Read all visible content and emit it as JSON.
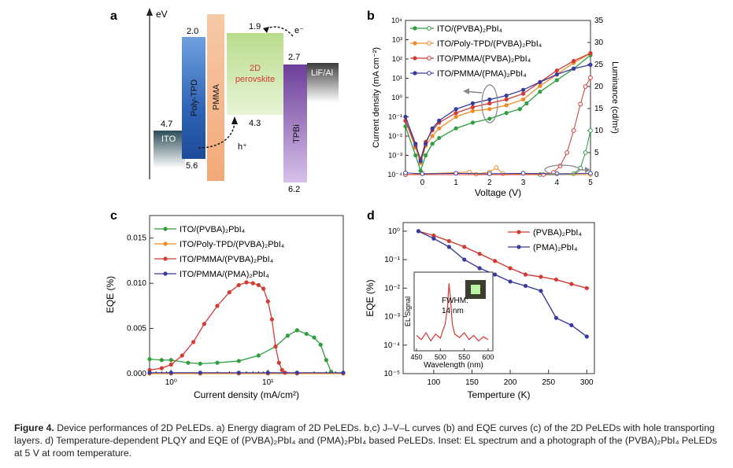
{
  "panel_a": {
    "letter": "a",
    "axis_label": "eV",
    "layers": [
      {
        "name": "ITO",
        "top": "4.7",
        "bottom": "",
        "color": "#2b4d57"
      },
      {
        "name": "Poly-TPD",
        "top": "2.0",
        "bottom": "5.6",
        "color": "#3a75c4"
      },
      {
        "name": "PMMA",
        "top": "",
        "bottom": "",
        "color": "#f4b58a"
      },
      {
        "name": "2D perovskite",
        "name_line1": "2D",
        "name_line2": "perovskite",
        "top": "1.9",
        "bottom": "4.3",
        "color": "#cfe6a8"
      },
      {
        "name": "TPBi",
        "top": "2.7",
        "bottom": "6.2",
        "color": "#8b5fb0"
      },
      {
        "name": "LiF/Al",
        "top": "",
        "bottom": "",
        "color": "#555555"
      }
    ],
    "electron_label": "e⁻",
    "hole_label": "h⁺"
  },
  "panel_b": {
    "letter": "b",
    "chart_data": {
      "type": "line",
      "xlabel": "Voltage (V)",
      "ylabel_left": "Current density (mA cm⁻²)",
      "ylabel_right": "Luminance (cd/m²)",
      "xlim": [
        -0.5,
        5
      ],
      "ylim_left_log10": [
        -4,
        4
      ],
      "ylim_right": [
        0,
        35
      ],
      "x_ticks": [
        "0",
        "1",
        "2",
        "3",
        "4",
        "5"
      ],
      "y_left_ticks": [
        "10⁻⁴",
        "10⁻³",
        "10⁻²",
        "10⁻¹",
        "10⁰",
        "10¹",
        "10²",
        "10³",
        "10⁴"
      ],
      "y_right_ticks": [
        "0",
        "5",
        "10",
        "15",
        "20",
        "25",
        "30",
        "35"
      ],
      "legend_position": "top-left",
      "series": [
        {
          "name": "ITO/(PVBA)₂PbI₄",
          "color": "#2e9e3e",
          "jv": [
            [
              -0.5,
              -1.5
            ],
            [
              -0.2,
              -3.0
            ],
            [
              -0.05,
              -3.8
            ],
            [
              0.1,
              -3.0
            ],
            [
              0.3,
              -2.4
            ],
            [
              0.5,
              -2.1
            ],
            [
              1.0,
              -1.6
            ],
            [
              1.5,
              -1.3
            ],
            [
              2.0,
              -1.1
            ],
            [
              2.5,
              -0.8
            ],
            [
              2.9,
              -0.6
            ],
            [
              3.1,
              -0.3
            ],
            [
              3.5,
              0.3
            ],
            [
              4.0,
              0.9
            ],
            [
              4.5,
              1.5
            ],
            [
              5.0,
              2.2
            ]
          ],
          "lum": [
            [
              -0.5,
              0
            ],
            [
              3.5,
              0
            ],
            [
              4.5,
              0.2
            ],
            [
              4.7,
              1.5
            ],
            [
              4.85,
              5
            ],
            [
              5.0,
              10
            ]
          ]
        },
        {
          "name": "ITO/Poly-TPD/(PVBA)₂PbI₄",
          "color": "#f08a24",
          "jv": [
            [
              -0.5,
              -1.2
            ],
            [
              -0.2,
              -2.6
            ],
            [
              -0.05,
              -3.4
            ],
            [
              0.1,
              -2.5
            ],
            [
              0.3,
              -2.0
            ],
            [
              0.5,
              -1.6
            ],
            [
              1.0,
              -1.0
            ],
            [
              1.5,
              -0.7
            ],
            [
              2.0,
              -0.6
            ],
            [
              2.5,
              -0.4
            ],
            [
              3.0,
              -0.1
            ],
            [
              3.5,
              0.6
            ],
            [
              4.0,
              1.2
            ],
            [
              4.5,
              1.8
            ],
            [
              5.0,
              2.3
            ]
          ],
          "lum": [
            [
              -0.5,
              0
            ],
            [
              1.4,
              0.6
            ],
            [
              1.6,
              0.1
            ],
            [
              2.0,
              0.6
            ],
            [
              2.2,
              1.6
            ],
            [
              2.4,
              0.2
            ],
            [
              5.0,
              0
            ]
          ]
        },
        {
          "name": "ITO/PMMA/(PVBA)₂PbI₄",
          "color": "#d23a32",
          "jv": [
            [
              -0.5,
              -1.2
            ],
            [
              -0.2,
              -2.5
            ],
            [
              -0.05,
              -3.2
            ],
            [
              0.1,
              -2.3
            ],
            [
              0.3,
              -1.7
            ],
            [
              0.5,
              -1.3
            ],
            [
              1.0,
              -0.8
            ],
            [
              1.5,
              -0.5
            ],
            [
              2.0,
              -0.3
            ],
            [
              2.5,
              -0.1
            ],
            [
              3.0,
              0.2
            ],
            [
              3.5,
              0.8
            ],
            [
              4.0,
              1.4
            ],
            [
              4.5,
              1.9
            ],
            [
              5.0,
              2.3
            ]
          ],
          "lum": [
            [
              -0.5,
              0
            ],
            [
              3.6,
              0
            ],
            [
              3.9,
              0.5
            ],
            [
              4.1,
              2
            ],
            [
              4.3,
              5
            ],
            [
              4.5,
              10
            ],
            [
              4.7,
              16
            ],
            [
              4.85,
              20
            ],
            [
              5.0,
              22
            ]
          ]
        },
        {
          "name": "ITO/PMMA/(PMA)₂PbI₄",
          "color": "#3a3a9e",
          "jv": [
            [
              -0.5,
              -1.0
            ],
            [
              -0.2,
              -2.4
            ],
            [
              -0.05,
              -3.3
            ],
            [
              0.1,
              -2.4
            ],
            [
              0.3,
              -1.6
            ],
            [
              0.5,
              -1.2
            ],
            [
              1.0,
              -0.6
            ],
            [
              1.5,
              -0.3
            ],
            [
              2.0,
              -0.1
            ],
            [
              2.5,
              0.1
            ],
            [
              3.0,
              0.4
            ],
            [
              3.5,
              0.8
            ],
            [
              4.0,
              1.2
            ],
            [
              4.5,
              1.5
            ],
            [
              5.0,
              1.7
            ]
          ],
          "lum": [
            [
              -0.5,
              0.4
            ],
            [
              0.0,
              0.2
            ],
            [
              1.0,
              0.3
            ],
            [
              2.0,
              0.2
            ],
            [
              3.0,
              0.3
            ],
            [
              4.0,
              0.2
            ],
            [
              5.0,
              0.3
            ]
          ]
        }
      ]
    }
  },
  "panel_c": {
    "letter": "c",
    "chart_data": {
      "type": "line",
      "xlabel": "Current density (mA/cm²)",
      "ylabel": "EQE (%)",
      "x_scale": "log",
      "xlim": [
        0.6,
        60
      ],
      "ylim": [
        0,
        0.0175
      ],
      "x_ticks": [
        "10⁰",
        "10¹"
      ],
      "y_ticks": [
        "0.000",
        "0.005",
        "0.010",
        "0.015"
      ],
      "legend_position": "top-left",
      "series": [
        {
          "name": "ITO/(PVBA)₂PbI₄",
          "color": "#2e9e3e",
          "x": [
            0.6,
            0.8,
            1.0,
            1.5,
            2.0,
            3.0,
            5.0,
            8.0,
            12.0,
            16.0,
            20.0,
            25.0,
            30.0,
            35.0,
            40.0,
            45.0
          ],
          "y": [
            0.0016,
            0.0015,
            0.0015,
            0.0012,
            0.0011,
            0.0012,
            0.0014,
            0.002,
            0.003,
            0.0042,
            0.0048,
            0.0044,
            0.004,
            0.0032,
            0.0015,
            0.0002
          ]
        },
        {
          "name": "ITO/Poly-TPD/(PVBA)₂PbI₄",
          "color": "#f08a24",
          "x": [
            0.6,
            1.0,
            2.0,
            5.0,
            10.0,
            20.0,
            60.0
          ],
          "y": [
            0.0,
            0.0,
            0.0,
            0.0,
            0.0,
            0.0,
            0.0
          ]
        },
        {
          "name": "ITO/PMMA/(PVBA)₂PbI₄",
          "color": "#d23a32",
          "x": [
            0.6,
            0.8,
            1.0,
            1.3,
            1.7,
            2.2,
            3.0,
            4.0,
            5.0,
            6.0,
            7.0,
            8.0,
            9.0,
            10.0,
            11.0,
            12.0,
            13.0,
            14.0,
            15.0
          ],
          "y": [
            0.0004,
            0.0006,
            0.001,
            0.002,
            0.0035,
            0.0055,
            0.0075,
            0.009,
            0.0098,
            0.0101,
            0.01,
            0.0098,
            0.0094,
            0.008,
            0.006,
            0.003,
            0.0012,
            0.0004,
            0.0001
          ]
        },
        {
          "name": "ITO/PMMA/(PMA)₂PbI₄",
          "color": "#3a3a9e",
          "x": [
            0.6,
            1.0,
            2.0,
            5.0,
            10.0,
            20.0,
            60.0
          ],
          "y": [
            0.0001,
            0.0001,
            0.0001,
            0.0001,
            0.0001,
            0.0001,
            0.0001
          ]
        }
      ]
    }
  },
  "panel_d": {
    "letter": "d",
    "chart_data": {
      "type": "line",
      "xlabel": "Temperture (K)",
      "ylabel": "EQE (%)",
      "y_scale": "log",
      "xlim": [
        60,
        310
      ],
      "ylim_log10": [
        -5,
        0.3
      ],
      "x_ticks": [
        "100",
        "150",
        "200",
        "250",
        "300"
      ],
      "y_ticks": [
        "10⁰",
        "10⁻¹",
        "10⁻²",
        "10⁻³",
        "10⁻⁴",
        "10⁻⁵"
      ],
      "legend_position": "top-right",
      "series": [
        {
          "name": "(PVBA)₂PbI₄",
          "color": "#d23a32",
          "x": [
            80,
            100,
            120,
            140,
            160,
            180,
            200,
            220,
            240,
            260,
            280,
            300
          ],
          "y": [
            1.0,
            0.7,
            0.45,
            0.28,
            0.16,
            0.09,
            0.05,
            0.03,
            0.025,
            0.02,
            0.014,
            0.01
          ]
        },
        {
          "name": "(PMA)₂PbI₄",
          "color": "#3a3a9e",
          "x": [
            80,
            100,
            120,
            140,
            160,
            180,
            200,
            220,
            240,
            260,
            280,
            300
          ],
          "y": [
            1.0,
            0.55,
            0.28,
            0.1,
            0.05,
            0.03,
            0.017,
            0.012,
            0.008,
            0.0009,
            0.0005,
            0.0002
          ]
        }
      ],
      "inset": {
        "xlabel": "Wavelength (nm)",
        "ylabel": "EL Signal",
        "x_ticks": [
          "450",
          "500",
          "550",
          "600"
        ],
        "fwhm_label": "FWHM:",
        "fwhm_value": "14 nm",
        "spectrum": [
          [
            450,
            0.18
          ],
          [
            460,
            0.12
          ],
          [
            470,
            0.22
          ],
          [
            480,
            0.1
          ],
          [
            490,
            0.2
          ],
          [
            500,
            0.14
          ],
          [
            505,
            0.25
          ],
          [
            510,
            0.35
          ],
          [
            515,
            0.6
          ],
          [
            518,
            0.95
          ],
          [
            521,
            0.75
          ],
          [
            525,
            0.35
          ],
          [
            530,
            0.2
          ],
          [
            540,
            0.15
          ],
          [
            550,
            0.22
          ],
          [
            560,
            0.12
          ],
          [
            570,
            0.18
          ],
          [
            580,
            0.1
          ],
          [
            590,
            0.16
          ],
          [
            600,
            0.12
          ]
        ]
      }
    }
  },
  "caption": {
    "label": "Figure 4.",
    "text": "Device performances of 2D PeLEDs. a) Energy diagram of 2D PeLEDs. b,c) J–V–L curves (b) and EQE curves (c) of the 2D PeLEDs with hole transporting layers. d) Temperature-dependent PLQY and EQE of (PVBA)₂PbI₄ and (PMA)₂PbI₄ based PeLEDs. Inset: EL spectrum and a photograph of the (PVBA)₂PbI₄ PeLEDs at 5 V at room temperature."
  }
}
